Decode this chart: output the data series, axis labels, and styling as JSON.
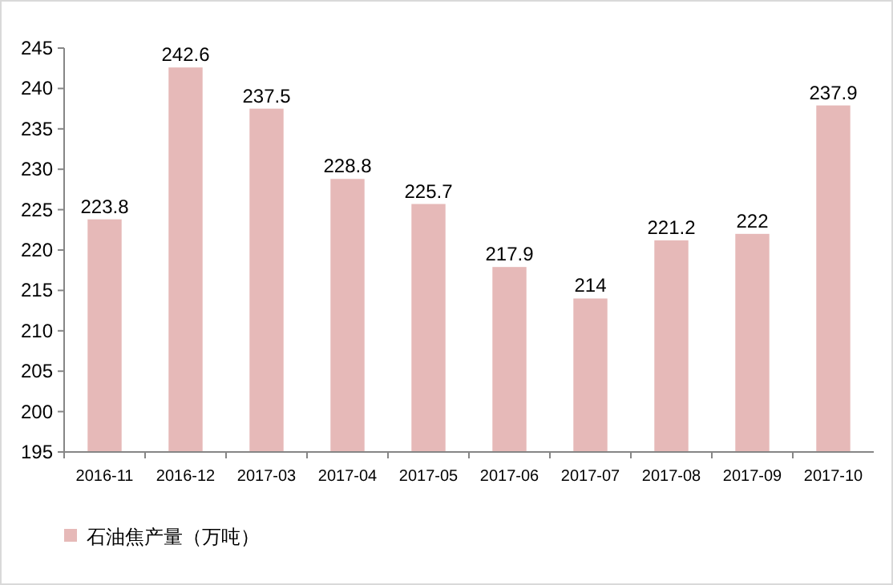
{
  "chart_data": {
    "type": "bar",
    "categories": [
      "2016-11",
      "2016-12",
      "2017-03",
      "2017-04",
      "2017-05",
      "2017-06",
      "2017-07",
      "2017-08",
      "2017-09",
      "2017-10"
    ],
    "series": [
      {
        "name": "石油焦产量（万吨）",
        "color": "#e6b9b8",
        "values": [
          223.8,
          242.6,
          237.5,
          228.8,
          225.7,
          217.9,
          214,
          221.2,
          222,
          237.9
        ]
      }
    ],
    "ylim": [
      195,
      245
    ],
    "yticks": [
      195,
      200,
      205,
      210,
      215,
      220,
      225,
      230,
      235,
      240,
      245
    ],
    "data_labels": true,
    "legend": "bottom left",
    "grid": false
  }
}
